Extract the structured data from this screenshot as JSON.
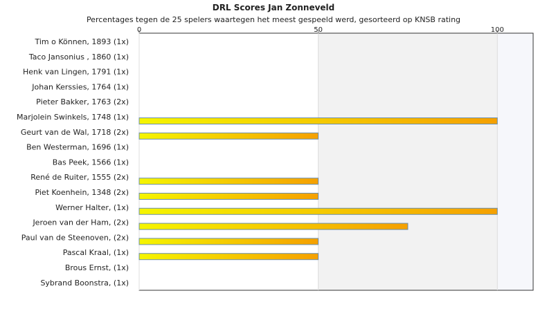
{
  "chart_data": {
    "type": "bar",
    "orientation": "horizontal",
    "title": "DRL Scores Jan Zonneveld",
    "subtitle": "Percentages tegen de 25 spelers waartegen het meest gespeeld werd, gesorteerd op KNSB rating",
    "categories": [
      "Tim o Können, 1893 (1x)",
      "Taco Jansonius , 1860 (1x)",
      "Henk van Lingen, 1791 (1x)",
      "Johan Kerssies, 1764 (1x)",
      "Pieter Bakker, 1763 (2x)",
      "Marjolein Swinkels, 1748 (1x)",
      "Geurt van de Wal, 1718 (2x)",
      "Ben Westerman, 1696 (1x)",
      "Bas Peek, 1566 (1x)",
      "René de Ruiter, 1555 (2x)",
      "Piet Koenhein, 1348 (2x)",
      "Werner Halter,  (1x)",
      "Jeroen van der Ham,  (2x)",
      "Paul van de Steenoven,  (2x)",
      "Pascal Kraal,  (1x)",
      "Brous Ernst,  (1x)",
      "Sybrand Boonstra,  (1x)"
    ],
    "values": [
      0,
      0,
      0,
      0,
      0,
      100,
      50,
      0,
      0,
      50,
      50,
      100,
      75,
      50,
      50,
      0,
      0
    ],
    "xlim": [
      0,
      110
    ],
    "xticks": [
      0,
      50,
      100
    ],
    "axis_position": "top",
    "bar_gradient": [
      "#f5f500",
      "#f5a000"
    ],
    "bar_border": "#6a8fb0",
    "band_colors": [
      "#ffffff",
      "#f2f2f2",
      "#f6f7fb"
    ]
  }
}
